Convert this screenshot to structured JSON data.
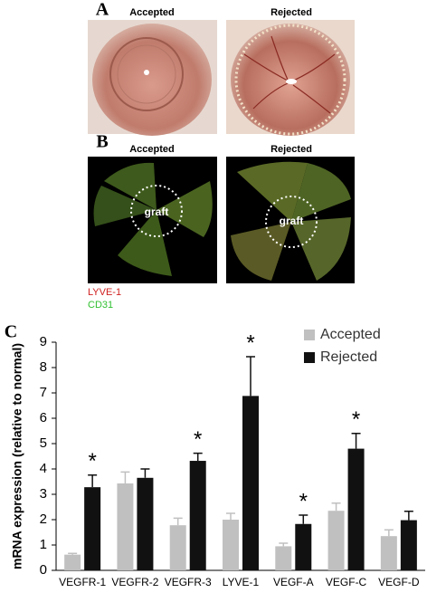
{
  "panel_a": {
    "label": "A",
    "left_title": "Accepted",
    "right_title": "Rejected"
  },
  "panel_b": {
    "label": "B",
    "left_title": "Accepted",
    "right_title": "Rejected",
    "left_graft": "graft",
    "right_graft": "graft",
    "stain_1": "LYVE-1",
    "stain_2": "CD31"
  },
  "panel_c_label": "C",
  "chart_data": {
    "type": "bar",
    "ylabel": "mRNA expression (relative to normal)",
    "categories": [
      "VEGFR-1",
      "VEGFR-2",
      "VEGFR-3",
      "LYVE-1",
      "VEGF-A",
      "VEGF-C",
      "VEGF-D"
    ],
    "series": [
      {
        "name": "Accepted",
        "color": "#c0c0c0",
        "values": [
          0.62,
          3.43,
          1.78,
          2.0,
          0.95,
          2.35,
          1.35
        ],
        "errors": [
          0.05,
          0.45,
          0.28,
          0.25,
          0.12,
          0.3,
          0.25
        ]
      },
      {
        "name": "Rejected",
        "color": "#111111",
        "values": [
          3.28,
          3.65,
          4.32,
          6.88,
          1.83,
          4.8,
          1.98
        ],
        "errors": [
          0.48,
          0.35,
          0.3,
          1.55,
          0.35,
          0.6,
          0.35
        ]
      }
    ],
    "annotations": [
      "*",
      null,
      "*",
      "*",
      "*",
      "*",
      null
    ],
    "ylim": [
      0,
      9
    ],
    "yticks": [
      0,
      1,
      2,
      3,
      4,
      5,
      6,
      7,
      8,
      9
    ],
    "grid": false,
    "legend": "top-right"
  }
}
